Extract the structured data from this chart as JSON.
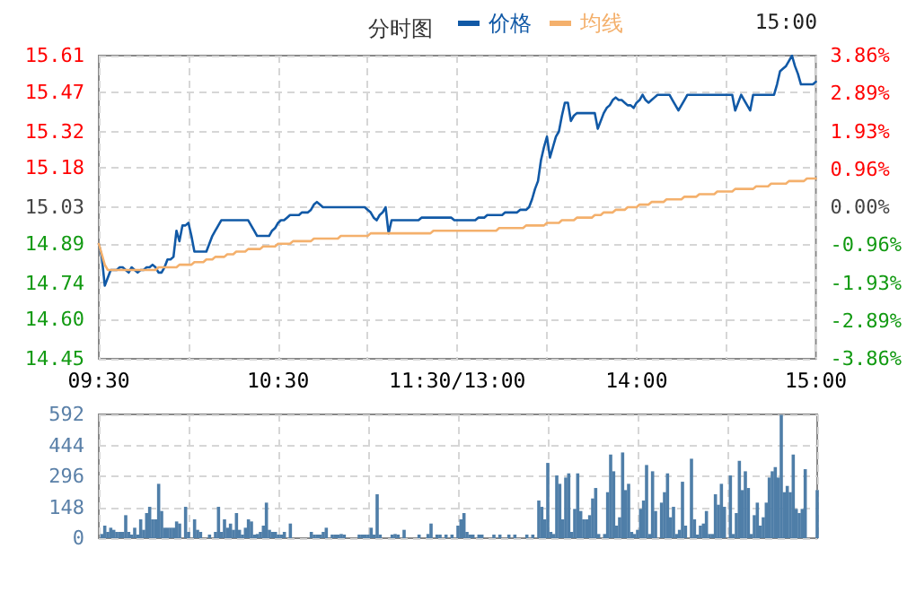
{
  "chart_data": [
    {
      "type": "line",
      "title": "分时图",
      "annotations": [
        "15:00"
      ],
      "legend": "top",
      "grid": true,
      "marker": "none",
      "line_style": "solid",
      "categories": [
        "09:30",
        null,
        null,
        null,
        null,
        null,
        null,
        null,
        null,
        null,
        null,
        null,
        null,
        null,
        null,
        null,
        null,
        null,
        null,
        null,
        null,
        null,
        null,
        null,
        null,
        null,
        null,
        null,
        null,
        null,
        null,
        null,
        null,
        null,
        null,
        null,
        null,
        null,
        null,
        null,
        null,
        null,
        null,
        null,
        null,
        null,
        null,
        null,
        null,
        null,
        null,
        null,
        null,
        null,
        null,
        null,
        null,
        null,
        null,
        null,
        "10:30",
        null,
        null,
        null,
        null,
        null,
        null,
        null,
        null,
        null,
        null,
        null,
        null,
        null,
        null,
        null,
        null,
        null,
        null,
        null,
        null,
        null,
        null,
        null,
        null,
        null,
        null,
        null,
        null,
        null,
        null,
        null,
        null,
        null,
        null,
        null,
        null,
        null,
        null,
        null,
        null,
        null,
        null,
        null,
        null,
        null,
        null,
        null,
        null,
        null,
        null,
        null,
        null,
        null,
        null,
        null,
        null,
        null,
        null,
        null,
        "11:30/13:00",
        null,
        null,
        null,
        null,
        null,
        null,
        null,
        null,
        null,
        null,
        null,
        null,
        null,
        null,
        null,
        null,
        null,
        null,
        null,
        null,
        null,
        null,
        null,
        null,
        null,
        null,
        null,
        null,
        null,
        null,
        null,
        null,
        null,
        null,
        null,
        null,
        null,
        null,
        null,
        null,
        null,
        null,
        null,
        null,
        null,
        null,
        null,
        null,
        null,
        null,
        null,
        null,
        null,
        null,
        null,
        null,
        null,
        null,
        null,
        "14:00",
        null,
        null,
        null,
        null,
        null,
        null,
        null,
        null,
        null,
        null,
        null,
        null,
        null,
        null,
        null,
        null,
        null,
        null,
        null,
        null,
        null,
        null,
        null,
        null,
        null,
        null,
        null,
        null,
        null,
        null,
        null,
        null,
        null,
        null,
        null,
        null,
        null,
        null,
        null,
        null,
        null,
        null,
        null,
        null,
        null,
        null,
        null,
        null,
        null,
        null,
        null,
        null,
        null,
        null,
        null,
        null,
        null,
        null,
        null,
        "15:00"
      ],
      "ylim": [
        14.45,
        15.61
      ],
      "yticks": [
        {
          "value": 14.45,
          "label": "14.45"
        },
        {
          "value": 14.6,
          "label": "14.60"
        },
        {
          "value": 14.74,
          "label": "14.74"
        },
        {
          "value": 14.89,
          "label": "14.89"
        },
        {
          "value": 15.03,
          "label": "15.03"
        },
        {
          "value": 15.18,
          "label": "15.18"
        },
        {
          "value": 15.32,
          "label": "15.32"
        },
        {
          "value": 15.47,
          "label": "15.47"
        },
        {
          "value": 15.61,
          "label": "15.61"
        }
      ],
      "y2lim": [
        -3.86,
        3.86
      ],
      "y2ticks": [
        {
          "value": -3.86,
          "label": "-3.86%"
        },
        {
          "value": -2.89,
          "label": "-2.89%"
        },
        {
          "value": -1.93,
          "label": "-1.93%"
        },
        {
          "value": -0.96,
          "label": "-0.96%"
        },
        {
          "value": 0,
          "label": "0.00%"
        },
        {
          "value": 0.96,
          "label": "0.96%"
        },
        {
          "value": 1.93,
          "label": "1.93%"
        },
        {
          "value": 2.89,
          "label": "2.89%"
        },
        {
          "value": 3.86,
          "label": "3.86%"
        }
      ],
      "series": [
        {
          "name": "价格",
          "color": "#1159a6",
          "values": [
            14.89,
            14.84,
            14.73,
            14.76,
            14.79,
            14.79,
            14.79,
            14.8,
            14.8,
            14.79,
            14.78,
            14.8,
            14.79,
            14.78,
            14.79,
            14.79,
            14.8,
            14.8,
            14.81,
            14.8,
            14.78,
            14.78,
            14.8,
            14.83,
            14.83,
            14.84,
            14.94,
            14.9,
            14.96,
            14.96,
            14.97,
            14.92,
            14.86,
            14.86,
            14.86,
            14.86,
            14.86,
            14.89,
            14.92,
            14.94,
            14.96,
            14.98,
            14.98,
            14.98,
            14.98,
            14.98,
            14.98,
            14.98,
            14.98,
            14.98,
            14.98,
            14.96,
            14.94,
            14.92,
            14.92,
            14.92,
            14.92,
            14.92,
            14.94,
            14.95,
            14.97,
            14.98,
            14.98,
            14.99,
            15.0,
            15.0,
            15.0,
            15.0,
            15.01,
            15.01,
            15.01,
            15.02,
            15.04,
            15.05,
            15.04,
            15.03,
            15.03,
            15.03,
            15.03,
            15.03,
            15.03,
            15.03,
            15.03,
            15.03,
            15.03,
            15.03,
            15.03,
            15.03,
            15.03,
            15.03,
            15.02,
            15.01,
            14.99,
            14.98,
            15.0,
            15.01,
            15.03,
            14.93,
            14.98,
            14.98,
            14.98,
            14.98,
            14.98,
            14.98,
            14.98,
            14.98,
            14.98,
            14.98,
            14.99,
            14.99,
            14.99,
            14.99,
            14.99,
            14.99,
            14.99,
            14.99,
            14.99,
            14.99,
            14.99,
            14.98,
            14.98,
            14.98,
            14.98,
            14.98,
            14.98,
            14.98,
            14.98,
            14.99,
            14.99,
            14.99,
            15.0,
            15.0,
            15.0,
            15.0,
            15.0,
            15.0,
            15.01,
            15.01,
            15.01,
            15.01,
            15.01,
            15.02,
            15.02,
            15.02,
            15.03,
            15.06,
            15.1,
            15.13,
            15.21,
            15.26,
            15.3,
            15.22,
            15.26,
            15.3,
            15.32,
            15.38,
            15.43,
            15.43,
            15.36,
            15.38,
            15.39,
            15.39,
            15.39,
            15.39,
            15.39,
            15.39,
            15.39,
            15.33,
            15.36,
            15.39,
            15.41,
            15.42,
            15.44,
            15.45,
            15.44,
            15.44,
            15.43,
            15.42,
            15.42,
            15.41,
            15.43,
            15.44,
            15.46,
            15.44,
            15.43,
            15.44,
            15.45,
            15.46,
            15.46,
            15.46,
            15.46,
            15.46,
            15.44,
            15.42,
            15.4,
            15.42,
            15.44,
            15.46,
            15.46,
            15.46,
            15.46,
            15.46,
            15.46,
            15.46,
            15.46,
            15.46,
            15.46,
            15.46,
            15.46,
            15.46,
            15.46,
            15.46,
            15.46,
            15.4,
            15.43,
            15.46,
            15.44,
            15.42,
            15.4,
            15.46,
            15.46,
            15.46,
            15.46,
            15.46,
            15.46,
            15.46,
            15.46,
            15.5,
            15.55,
            15.56,
            15.57,
            15.59,
            15.61,
            15.57,
            15.54,
            15.5,
            15.5,
            15.5,
            15.5,
            15.5,
            15.51
          ]
        },
        {
          "name": "均线",
          "color": "#f4b06c",
          "values": [
            14.89,
            14.85,
            14.81,
            14.79,
            14.79,
            14.79,
            14.79,
            14.79,
            14.79,
            14.79,
            14.79,
            14.79,
            14.79,
            14.79,
            14.79,
            14.79,
            14.79,
            14.79,
            14.79,
            14.79,
            14.8,
            14.8,
            14.8,
            14.8,
            14.8,
            14.8,
            14.8,
            14.81,
            14.81,
            14.81,
            14.81,
            14.81,
            14.82,
            14.82,
            14.82,
            14.82,
            14.83,
            14.83,
            14.83,
            14.84,
            14.84,
            14.84,
            14.84,
            14.85,
            14.85,
            14.85,
            14.86,
            14.86,
            14.86,
            14.86,
            14.87,
            14.87,
            14.87,
            14.87,
            14.87,
            14.88,
            14.88,
            14.88,
            14.88,
            14.88,
            14.89,
            14.89,
            14.89,
            14.89,
            14.89,
            14.9,
            14.9,
            14.9,
            14.9,
            14.9,
            14.9,
            14.9,
            14.91,
            14.91,
            14.91,
            14.91,
            14.91,
            14.91,
            14.91,
            14.91,
            14.91,
            14.92,
            14.92,
            14.92,
            14.92,
            14.92,
            14.92,
            14.92,
            14.92,
            14.92,
            14.92,
            14.93,
            14.93,
            14.93,
            14.93,
            14.93,
            14.93,
            14.93,
            14.93,
            14.93,
            14.93,
            14.93,
            14.93,
            14.93,
            14.93,
            14.93,
            14.93,
            14.93,
            14.93,
            14.93,
            14.93,
            14.93,
            14.94,
            14.94,
            14.94,
            14.94,
            14.94,
            14.94,
            14.94,
            14.94,
            14.94,
            14.94,
            14.94,
            14.94,
            14.94,
            14.94,
            14.94,
            14.94,
            14.94,
            14.94,
            14.94,
            14.94,
            14.94,
            14.94,
            14.95,
            14.95,
            14.95,
            14.95,
            14.95,
            14.95,
            14.95,
            14.95,
            14.95,
            14.96,
            14.96,
            14.96,
            14.96,
            14.96,
            14.96,
            14.96,
            14.97,
            14.97,
            14.97,
            14.97,
            14.97,
            14.98,
            14.98,
            14.98,
            14.98,
            14.98,
            14.99,
            14.99,
            14.99,
            14.99,
            14.99,
            14.99,
            15.0,
            15.0,
            15.0,
            15.01,
            15.01,
            15.01,
            15.01,
            15.02,
            15.02,
            15.02,
            15.02,
            15.03,
            15.03,
            15.03,
            15.03,
            15.04,
            15.04,
            15.04,
            15.04,
            15.05,
            15.05,
            15.05,
            15.05,
            15.05,
            15.06,
            15.06,
            15.06,
            15.06,
            15.06,
            15.06,
            15.07,
            15.07,
            15.07,
            15.07,
            15.07,
            15.08,
            15.08,
            15.08,
            15.08,
            15.08,
            15.08,
            15.09,
            15.09,
            15.09,
            15.09,
            15.09,
            15.09,
            15.1,
            15.1,
            15.1,
            15.1,
            15.1,
            15.1,
            15.1,
            15.11,
            15.11,
            15.11,
            15.11,
            15.11,
            15.12,
            15.12,
            15.12,
            15.12,
            15.12,
            15.12,
            15.13,
            15.13,
            15.13,
            15.13,
            15.13,
            15.13,
            15.14,
            15.14,
            15.14,
            15.14
          ]
        }
      ]
    },
    {
      "type": "bar",
      "tick_labels": "y",
      "grid": true,
      "categories": [
        null,
        null,
        null,
        null,
        null,
        null,
        null,
        null,
        null,
        null,
        null,
        null,
        null,
        null,
        null,
        null,
        null,
        null,
        null,
        null,
        null,
        null,
        null,
        null,
        null,
        null,
        null,
        null,
        null,
        null,
        null,
        null,
        null,
        null,
        null,
        null,
        null,
        null,
        null,
        null,
        null,
        null,
        null,
        null,
        null,
        null,
        null,
        null,
        null,
        null,
        null,
        null,
        null,
        null,
        null,
        null,
        null,
        null,
        null,
        null,
        null,
        null,
        null,
        null,
        null,
        null,
        null,
        null,
        null,
        null,
        null,
        null,
        null,
        null,
        null,
        null,
        null,
        null,
        null,
        null,
        null,
        null,
        null,
        null,
        null,
        null,
        null,
        null,
        null,
        null,
        null,
        null,
        null,
        null,
        null,
        null,
        null,
        null,
        null,
        null,
        null,
        null,
        null,
        null,
        null,
        null,
        null,
        null,
        null,
        null,
        null,
        null,
        null,
        null,
        null,
        null,
        null,
        null,
        null,
        null,
        null,
        null,
        null,
        null,
        null,
        null,
        null,
        null,
        null,
        null,
        null,
        null,
        null,
        null,
        null,
        null,
        null,
        null,
        null,
        null,
        null,
        null,
        null,
        null,
        null,
        null,
        null,
        null,
        null,
        null,
        null,
        null,
        null,
        null,
        null,
        null,
        null,
        null,
        null,
        null,
        null,
        null,
        null,
        null,
        null,
        null,
        null,
        null,
        null,
        null,
        null,
        null,
        null,
        null,
        null,
        null,
        null,
        null,
        null,
        null,
        null,
        null,
        null,
        null,
        null,
        null,
        null,
        null,
        null,
        null,
        null,
        null,
        null,
        null,
        null,
        null,
        null,
        null,
        null,
        null,
        null,
        null,
        null,
        null,
        null,
        null,
        null,
        null,
        null,
        null,
        null,
        null,
        null,
        null,
        null,
        null,
        null,
        null,
        null,
        null,
        null,
        null,
        null,
        null,
        null,
        null,
        null,
        null,
        null,
        null,
        null,
        null,
        null,
        null,
        null,
        null,
        null,
        null,
        null,
        null,
        null
      ],
      "ylim": [
        0,
        592
      ],
      "yticks": [
        0,
        148,
        296,
        444,
        592
      ],
      "series": [
        {
          "color": "#4f7ea8",
          "values": [
            null,
            20,
            60,
            30,
            50,
            40,
            30,
            30,
            30,
            110,
            30,
            10,
            50,
            10,
            90,
            40,
            120,
            150,
            90,
            90,
            260,
            130,
            50,
            50,
            50,
            50,
            80,
            70,
            null,
            150,
            30,
            null,
            90,
            40,
            30,
            null,
            null,
            10,
            null,
            30,
            150,
            30,
            90,
            50,
            70,
            40,
            120,
            40,
            10,
            50,
            90,
            80,
            10,
            20,
            30,
            60,
            170,
            40,
            30,
            30,
            10,
            10,
            30,
            null,
            70,
            null,
            null,
            null,
            null,
            null,
            null,
            30,
            10,
            10,
            10,
            30,
            50,
            null,
            10,
            10,
            10,
            20,
            10,
            null,
            null,
            null,
            null,
            10,
            10,
            10,
            10,
            50,
            10,
            210,
            10,
            null,
            null,
            null,
            10,
            20,
            10,
            null,
            40,
            null,
            null,
            null,
            null,
            10,
            null,
            null,
            20,
            70,
            null,
            10,
            10,
            null,
            10,
            null,
            10,
            null,
            60,
            90,
            120,
            30,
            10,
            10,
            null,
            10,
            10,
            null,
            null,
            null,
            10,
            null,
            10,
            null,
            null,
            10,
            null,
            10,
            null,
            null,
            null,
            10,
            null,
            10,
            null,
            180,
            150,
            90,
            360,
            30,
            20,
            300,
            260,
            90,
            290,
            310,
            30,
            140,
            310,
            130,
            90,
            90,
            110,
            190,
            240,
            20,
            null,
            20,
            220,
            400,
            320,
            60,
            100,
            410,
            230,
            260,
            30,
            20,
            40,
            140,
            180,
            350,
            20,
            320,
            130,
            null,
            170,
            220,
            310,
            100,
            150,
            20,
            40,
            270,
            60,
            null,
            380,
            90,
            10,
            60,
            70,
            130,
            20,
            20,
            210,
            160,
            260,
            150,
            null,
            300,
            20,
            120,
            370,
            230,
            320,
            240,
            20,
            110,
            170,
            60,
            100,
            170,
            290,
            320,
            340,
            290,
            590,
            220,
            250,
            220,
            400,
            140,
            120,
            140,
            330,
            null,
            null,
            null,
            230
          ]
        }
      ]
    }
  ]
}
